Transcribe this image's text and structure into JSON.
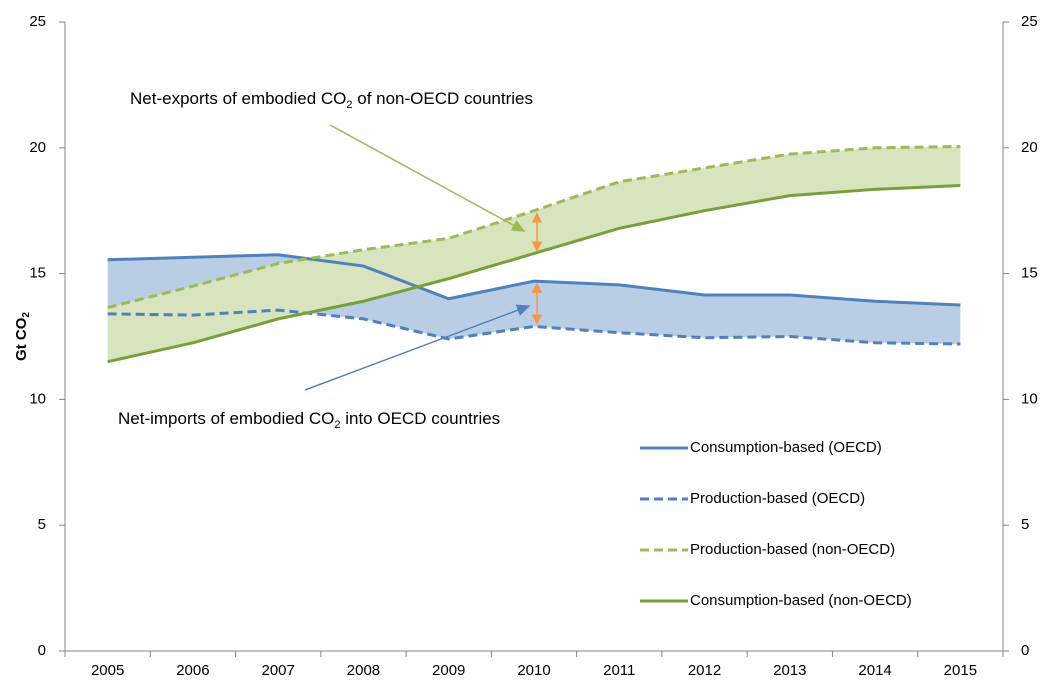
{
  "chart_data": {
    "type": "line",
    "ylabel": [
      "Gt CO",
      "2"
    ],
    "categories": [
      "2005",
      "2006",
      "2007",
      "2008",
      "2009",
      "2010",
      "2011",
      "2012",
      "2013",
      "2014",
      "2015"
    ],
    "series": [
      {
        "name": "Consumption-based (OECD)",
        "color": "#4f81bd",
        "dashed": false,
        "values": [
          15.55,
          15.65,
          15.75,
          15.3,
          14.0,
          14.7,
          14.55,
          14.15,
          14.15,
          13.9,
          13.75
        ]
      },
      {
        "name": "Production-based (OECD)",
        "color": "#4f81bd",
        "dashed": true,
        "values": [
          13.4,
          13.35,
          13.55,
          13.2,
          12.4,
          12.9,
          12.65,
          12.45,
          12.5,
          12.25,
          12.2
        ]
      },
      {
        "name": "Production-based (non-OECD)",
        "color": "#9bbb59",
        "dashed": true,
        "values": [
          13.65,
          14.5,
          15.4,
          15.95,
          16.4,
          17.5,
          18.65,
          19.2,
          19.75,
          20.0,
          20.05
        ]
      },
      {
        "name": "Consumption-based (non-OECD)",
        "color": "#77a03b",
        "dashed": false,
        "values": [
          11.5,
          12.25,
          13.2,
          13.9,
          14.8,
          15.8,
          16.8,
          17.5,
          18.1,
          18.35,
          18.5
        ]
      }
    ],
    "fills": [
      {
        "between": [
          0,
          1
        ],
        "color": "#b9cde5"
      },
      {
        "between": [
          2,
          3
        ],
        "color": "#d7e4bd"
      }
    ],
    "annotations": [
      {
        "text": [
          "Net-exports of embodied CO",
          "2",
          " of non-OECD countries"
        ],
        "color": "#9bbb59"
      },
      {
        "text": [
          "Net-imports of embodied CO",
          "2",
          " into OECD countries"
        ],
        "color": "#4f81bd"
      }
    ],
    "gap_marker_color": "#f79646",
    "ylim": [
      0,
      25
    ],
    "yticks": [
      0,
      5,
      10,
      15,
      20,
      25
    ],
    "y2lim": [
      0,
      25
    ],
    "y2ticks": [
      0,
      5,
      10,
      15,
      20,
      25
    ],
    "legend": "lower right"
  }
}
